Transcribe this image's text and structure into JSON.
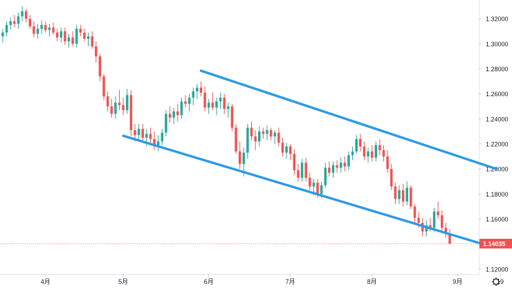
{
  "chart_data": {
    "type": "candlestick",
    "y_axis": {
      "range": [
        1.116,
        1.335
      ],
      "ticks": [
        "1.32000",
        "1.30000",
        "1.28000",
        "1.26000",
        "1.24000",
        "1.22000",
        "1.20000",
        "1.18000",
        "1.16000",
        "1.14000",
        "1.12000"
      ],
      "position": "right"
    },
    "x_axis": {
      "ticks": [
        {
          "label": "4月",
          "index": 11
        },
        {
          "label": "5月",
          "index": 31
        },
        {
          "label": "6月",
          "index": 53
        },
        {
          "label": "7月",
          "index": 74
        },
        {
          "label": "8月",
          "index": 95
        },
        {
          "label": "9月",
          "index": 117
        },
        {
          "label": "19",
          "index": 128
        }
      ]
    },
    "last_price": {
      "label": "1.14035",
      "value": 1.14035,
      "color": "#ef5350"
    },
    "channel_lines": [
      {
        "from": {
          "index": 51,
          "price": 1.2785
        },
        "to": {
          "index": 127,
          "price": 1.2
        },
        "color": "#2d9ae5"
      },
      {
        "from": {
          "index": 31,
          "price": 1.2265
        },
        "to": {
          "index": 124,
          "price": 1.1395
        },
        "color": "#2d9ae5"
      }
    ],
    "up_color": "#26a69a",
    "down_color": "#ef5350",
    "candles": [
      [
        1.306,
        1.312,
        1.301,
        1.309
      ],
      [
        1.309,
        1.318,
        1.306,
        1.315
      ],
      [
        1.315,
        1.321,
        1.311,
        1.318
      ],
      [
        1.318,
        1.323,
        1.313,
        1.316
      ],
      [
        1.316,
        1.325,
        1.312,
        1.322
      ],
      [
        1.322,
        1.33,
        1.318,
        1.326
      ],
      [
        1.326,
        1.328,
        1.317,
        1.32
      ],
      [
        1.32,
        1.323,
        1.312,
        1.314
      ],
      [
        1.314,
        1.318,
        1.305,
        1.308
      ],
      [
        1.308,
        1.316,
        1.304,
        1.312
      ],
      [
        1.312,
        1.319,
        1.308,
        1.315
      ],
      [
        1.315,
        1.318,
        1.309,
        1.311
      ],
      [
        1.311,
        1.316,
        1.306,
        1.313
      ],
      [
        1.313,
        1.317,
        1.307,
        1.309
      ],
      [
        1.309,
        1.312,
        1.302,
        1.305
      ],
      [
        1.305,
        1.313,
        1.301,
        1.31
      ],
      [
        1.31,
        1.313,
        1.299,
        1.302
      ],
      [
        1.302,
        1.308,
        1.297,
        1.305
      ],
      [
        1.305,
        1.31,
        1.298,
        1.3
      ],
      [
        1.3,
        1.315,
        1.297,
        1.312
      ],
      [
        1.312,
        1.315,
        1.306,
        1.309
      ],
      [
        1.309,
        1.312,
        1.302,
        1.304
      ],
      [
        1.304,
        1.309,
        1.298,
        1.306
      ],
      [
        1.306,
        1.31,
        1.296,
        1.298
      ],
      [
        1.298,
        1.302,
        1.285,
        1.29
      ],
      [
        1.29,
        1.292,
        1.27,
        1.274
      ],
      [
        1.274,
        1.276,
        1.255,
        1.258
      ],
      [
        1.258,
        1.262,
        1.246,
        1.25
      ],
      [
        1.25,
        1.256,
        1.241,
        1.244
      ],
      [
        1.244,
        1.258,
        1.24,
        1.253
      ],
      [
        1.253,
        1.263,
        1.247,
        1.251
      ],
      [
        1.251,
        1.257,
        1.243,
        1.247
      ],
      [
        1.247,
        1.264,
        1.244,
        1.259
      ],
      [
        1.259,
        1.263,
        1.226,
        1.231
      ],
      [
        1.231,
        1.236,
        1.222,
        1.227
      ],
      [
        1.227,
        1.236,
        1.223,
        1.232
      ],
      [
        1.232,
        1.236,
        1.222,
        1.225
      ],
      [
        1.225,
        1.232,
        1.218,
        1.228
      ],
      [
        1.228,
        1.233,
        1.221,
        1.224
      ],
      [
        1.224,
        1.23,
        1.215,
        1.218
      ],
      [
        1.218,
        1.227,
        1.214,
        1.222
      ],
      [
        1.222,
        1.232,
        1.219,
        1.229
      ],
      [
        1.229,
        1.247,
        1.226,
        1.244
      ],
      [
        1.244,
        1.25,
        1.237,
        1.241
      ],
      [
        1.241,
        1.249,
        1.236,
        1.246
      ],
      [
        1.246,
        1.252,
        1.238,
        1.243
      ],
      [
        1.243,
        1.257,
        1.24,
        1.254
      ],
      [
        1.254,
        1.259,
        1.249,
        1.252
      ],
      [
        1.252,
        1.26,
        1.246,
        1.257
      ],
      [
        1.257,
        1.265,
        1.251,
        1.262
      ],
      [
        1.262,
        1.268,
        1.256,
        1.265
      ],
      [
        1.265,
        1.27,
        1.258,
        1.261
      ],
      [
        1.261,
        1.266,
        1.246,
        1.249
      ],
      [
        1.249,
        1.256,
        1.244,
        1.253
      ],
      [
        1.253,
        1.261,
        1.247,
        1.249
      ],
      [
        1.249,
        1.257,
        1.243,
        1.254
      ],
      [
        1.254,
        1.261,
        1.248,
        1.257
      ],
      [
        1.257,
        1.26,
        1.244,
        1.248
      ],
      [
        1.248,
        1.253,
        1.241,
        1.25
      ],
      [
        1.25,
        1.252,
        1.23,
        1.233
      ],
      [
        1.233,
        1.236,
        1.212,
        1.214
      ],
      [
        1.214,
        1.222,
        1.2,
        1.204
      ],
      [
        1.204,
        1.217,
        1.194,
        1.213
      ],
      [
        1.213,
        1.236,
        1.208,
        1.233
      ],
      [
        1.233,
        1.238,
        1.223,
        1.226
      ],
      [
        1.226,
        1.231,
        1.215,
        1.222
      ],
      [
        1.222,
        1.234,
        1.218,
        1.23
      ],
      [
        1.23,
        1.233,
        1.224,
        1.228
      ],
      [
        1.228,
        1.235,
        1.223,
        1.231
      ],
      [
        1.231,
        1.233,
        1.223,
        1.226
      ],
      [
        1.226,
        1.231,
        1.22,
        1.229
      ],
      [
        1.229,
        1.233,
        1.218,
        1.221
      ],
      [
        1.221,
        1.225,
        1.21,
        1.213
      ],
      [
        1.213,
        1.221,
        1.208,
        1.218
      ],
      [
        1.218,
        1.22,
        1.207,
        1.212
      ],
      [
        1.212,
        1.216,
        1.195,
        1.199
      ],
      [
        1.199,
        1.204,
        1.19,
        1.193
      ],
      [
        1.193,
        1.208,
        1.19,
        1.205
      ],
      [
        1.205,
        1.209,
        1.19,
        1.193
      ],
      [
        1.193,
        1.197,
        1.183,
        1.186
      ],
      [
        1.186,
        1.192,
        1.179,
        1.189
      ],
      [
        1.189,
        1.192,
        1.177,
        1.18
      ],
      [
        1.18,
        1.19,
        1.177,
        1.187
      ],
      [
        1.187,
        1.205,
        1.185,
        1.201
      ],
      [
        1.201,
        1.206,
        1.194,
        1.197
      ],
      [
        1.197,
        1.206,
        1.193,
        1.203
      ],
      [
        1.203,
        1.207,
        1.197,
        1.201
      ],
      [
        1.201,
        1.209,
        1.197,
        1.205
      ],
      [
        1.205,
        1.21,
        1.198,
        1.202
      ],
      [
        1.202,
        1.214,
        1.199,
        1.211
      ],
      [
        1.211,
        1.218,
        1.207,
        1.214
      ],
      [
        1.214,
        1.227,
        1.212,
        1.224
      ],
      [
        1.224,
        1.228,
        1.214,
        1.218
      ],
      [
        1.218,
        1.222,
        1.207,
        1.21
      ],
      [
        1.21,
        1.217,
        1.205,
        1.214
      ],
      [
        1.214,
        1.219,
        1.206,
        1.209
      ],
      [
        1.209,
        1.222,
        1.206,
        1.219
      ],
      [
        1.219,
        1.224,
        1.211,
        1.215
      ],
      [
        1.215,
        1.219,
        1.206,
        1.21
      ],
      [
        1.21,
        1.215,
        1.197,
        1.2
      ],
      [
        1.2,
        1.204,
        1.183,
        1.186
      ],
      [
        1.186,
        1.189,
        1.172,
        1.176
      ],
      [
        1.176,
        1.187,
        1.172,
        1.183
      ],
      [
        1.183,
        1.188,
        1.17,
        1.174
      ],
      [
        1.174,
        1.19,
        1.171,
        1.185
      ],
      [
        1.185,
        1.187,
        1.168,
        1.17
      ],
      [
        1.17,
        1.172,
        1.157,
        1.161
      ],
      [
        1.161,
        1.166,
        1.153,
        1.157
      ],
      [
        1.157,
        1.161,
        1.146,
        1.15
      ],
      [
        1.15,
        1.159,
        1.146,
        1.155
      ],
      [
        1.155,
        1.161,
        1.15,
        1.153
      ],
      [
        1.153,
        1.169,
        1.15,
        1.166
      ],
      [
        1.166,
        1.174,
        1.16,
        1.163
      ],
      [
        1.163,
        1.167,
        1.15,
        1.153
      ],
      [
        1.153,
        1.157,
        1.145,
        1.148
      ],
      [
        1.148,
        1.152,
        1.14,
        1.14035
      ]
    ]
  }
}
